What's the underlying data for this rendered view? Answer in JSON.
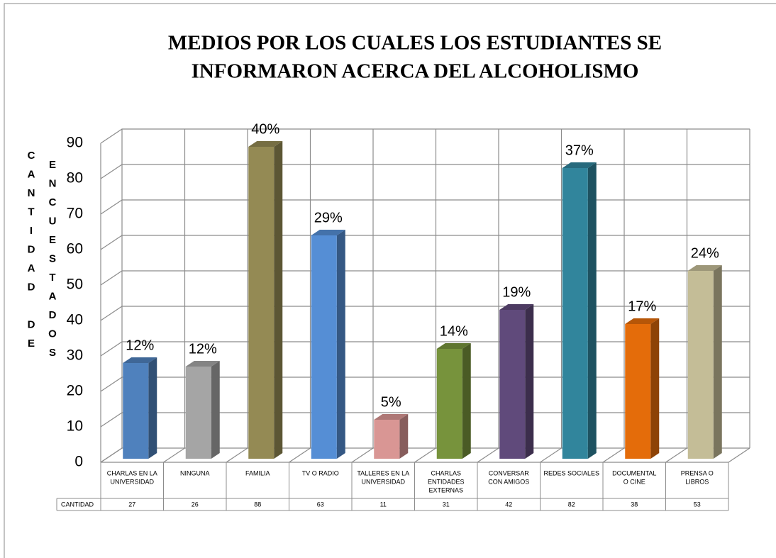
{
  "chart_data": {
    "type": "bar3d",
    "title": [
      "MEDIOS POR LOS CUALES LOS ESTUDIANTES SE",
      "INFORMARON ACERCA DEL ALCOHOLISMO"
    ],
    "y_label": [
      "CANTIDAD DE",
      "ENCUESTADOS"
    ],
    "categories": [
      [
        "CHARLAS  EN LA",
        "UNIVERSIDAD"
      ],
      [
        "NINGUNA"
      ],
      [
        "FAMILIA"
      ],
      [
        "TV O RADIO"
      ],
      [
        "TALLERES EN LA",
        "UNIVERSIDAD"
      ],
      [
        "CHARLAS",
        "ENTIDADES",
        "EXTERNAS"
      ],
      [
        "CONVERSAR",
        "CON AMIGOS"
      ],
      [
        "REDES SOCIALES"
      ],
      [
        "DOCUMENTAL",
        "O CINE"
      ],
      [
        "PRENSA O",
        "LIBROS"
      ]
    ],
    "series_name": "CANTIDAD",
    "values": [
      27,
      26,
      88,
      63,
      11,
      31,
      42,
      82,
      38,
      53
    ],
    "percent_labels": [
      "12%",
      "12%",
      "40%",
      "29%",
      "5%",
      "14%",
      "19%",
      "37%",
      "17%",
      "24%"
    ],
    "colors": [
      "#4f81bd",
      "#a5a5a5",
      "#948a54",
      "#558ed5",
      "#d99694",
      "#77933c",
      "#604a7b",
      "#31859c",
      "#e46c0a",
      "#c4bd97"
    ],
    "ylim": [
      0,
      90
    ],
    "yticks": [
      0,
      10,
      20,
      30,
      40,
      50,
      60,
      70,
      80,
      90
    ],
    "grid": true
  }
}
